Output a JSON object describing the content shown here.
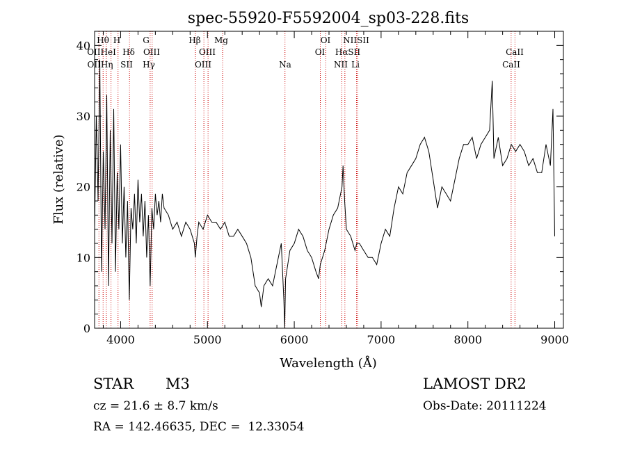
{
  "chart_data": {
    "type": "line",
    "title": "spec-55920-F5592004_sp03-228.fits",
    "xlabel": "Wavelength (Å)",
    "ylabel": "Flux (relative)",
    "xlim": [
      3700,
      9100
    ],
    "ylim": [
      0,
      42
    ],
    "x_ticks": [
      4000,
      5000,
      6000,
      7000,
      8000,
      9000
    ],
    "y_ticks": [
      0,
      10,
      20,
      30,
      40
    ],
    "grid": false,
    "series": [
      {
        "line_color": "#000000",
        "x": [
          3700,
          3720,
          3740,
          3760,
          3780,
          3800,
          3820,
          3840,
          3860,
          3880,
          3900,
          3920,
          3940,
          3960,
          3980,
          4000,
          4020,
          4040,
          4060,
          4080,
          4100,
          4120,
          4140,
          4160,
          4180,
          4200,
          4220,
          4240,
          4260,
          4280,
          4300,
          4320,
          4340,
          4360,
          4380,
          4400,
          4420,
          4440,
          4460,
          4480,
          4500,
          4550,
          4600,
          4650,
          4700,
          4750,
          4800,
          4850,
          4860,
          4880,
          4900,
          4950,
          5000,
          5050,
          5100,
          5150,
          5200,
          5250,
          5300,
          5350,
          5400,
          5450,
          5500,
          5550,
          5600,
          5620,
          5650,
          5700,
          5750,
          5800,
          5850,
          5880,
          5890,
          5900,
          5950,
          6000,
          6050,
          6100,
          6150,
          6200,
          6250,
          6280,
          6300,
          6350,
          6400,
          6450,
          6500,
          6550,
          6562,
          6580,
          6600,
          6650,
          6700,
          6720,
          6750,
          6800,
          6850,
          6900,
          6950,
          7000,
          7050,
          7100,
          7150,
          7200,
          7250,
          7300,
          7350,
          7400,
          7450,
          7500,
          7550,
          7600,
          7650,
          7700,
          7750,
          7800,
          7850,
          7900,
          7950,
          8000,
          8050,
          8100,
          8150,
          8200,
          8250,
          8280,
          8300,
          8350,
          8400,
          8450,
          8500,
          8550,
          8600,
          8650,
          8700,
          8750,
          8800,
          8850,
          8900,
          8950,
          8980,
          9000
        ],
        "y": [
          14,
          30,
          18,
          38,
          8,
          25,
          14,
          33,
          6,
          28,
          12,
          31,
          8,
          22,
          14,
          26,
          12,
          20,
          10,
          18,
          4,
          17,
          14,
          19,
          12,
          21,
          15,
          19,
          13,
          18,
          10,
          16,
          6,
          17,
          14,
          19,
          16,
          18,
          15,
          19,
          17,
          16,
          14,
          15,
          13,
          15,
          14,
          12,
          10,
          13,
          15,
          14,
          16,
          15,
          15,
          14,
          15,
          13,
          13,
          14,
          13,
          12,
          10,
          6,
          5,
          3,
          6,
          7,
          6,
          9,
          12,
          4,
          0,
          7,
          11,
          12,
          14,
          13,
          11,
          10,
          8,
          7,
          9,
          11,
          14,
          16,
          17,
          20,
          23,
          18,
          14,
          13,
          11,
          12,
          12,
          11,
          10,
          10,
          9,
          12,
          14,
          13,
          17,
          20,
          19,
          22,
          23,
          24,
          26,
          27,
          25,
          21,
          17,
          20,
          19,
          18,
          21,
          24,
          26,
          26,
          27,
          24,
          26,
          27,
          28,
          35,
          24,
          27,
          23,
          24,
          26,
          25,
          26,
          25,
          23,
          24,
          22,
          22,
          26,
          23,
          31,
          13
        ]
      }
    ],
    "annotations": {
      "row1": [
        "Hθ",
        "H",
        "G",
        "Hβ",
        "Mg",
        "OI",
        "NIISII"
      ],
      "row2": [
        "OIIHeI",
        "Hδ",
        "OIII",
        "OIII",
        "OI",
        "HαSII",
        "CaII"
      ],
      "row3": [
        "OIIHη",
        "SII",
        "Hγ",
        "OIII",
        "Na",
        "NII",
        "Li",
        "CaII"
      ]
    },
    "line_marker_color": "#cc0000"
  },
  "info": {
    "object_type": "STAR",
    "subclass": "M3",
    "survey": "LAMOST DR2",
    "cz": "cz = 21.6 ± 8.7 km/s",
    "obs_date": "Obs-Date: 20111224",
    "coords": "RA = 142.46635, DEC =  12.33054"
  }
}
